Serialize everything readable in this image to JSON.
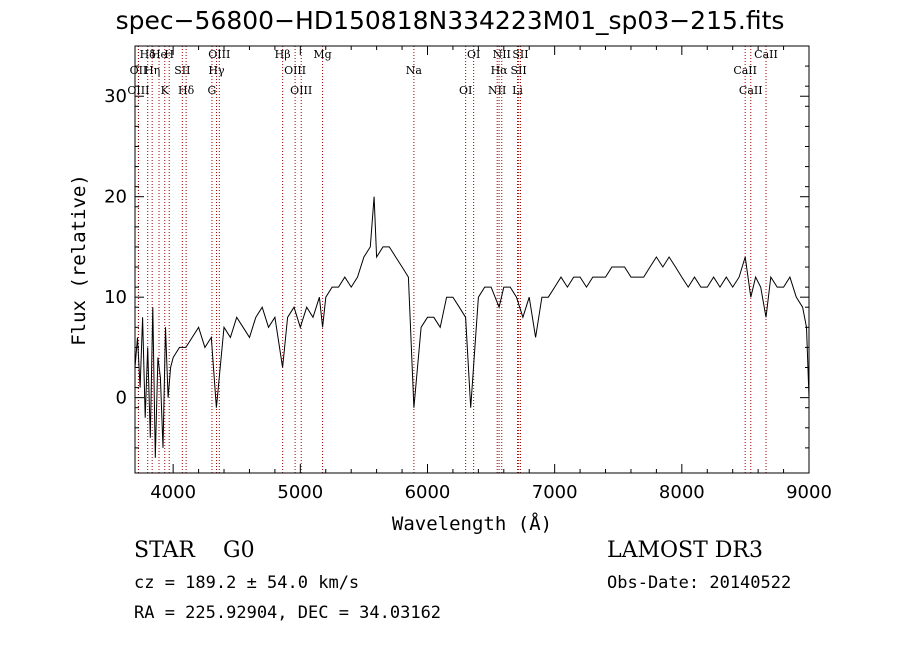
{
  "header": {
    "title": "spec−56800−HD150818N334223M01_sp03−215.fits"
  },
  "info": {
    "object_type": "STAR",
    "subclass": "G0",
    "survey": "LAMOST DR3",
    "cz": "cz = 189.2 ± 54.0 km/s",
    "obs_date": "Obs-Date: 20140522",
    "radec": "RA = 225.92904, DEC =  34.03162"
  },
  "colors": {
    "line_marker": "#a00000",
    "spectrum": "#000000",
    "axis": "#000000"
  },
  "chart_data": {
    "type": "line",
    "title": "spec−56800−HD150818N334223M01_sp03−215.fits",
    "xlabel": "Wavelength (Å)",
    "ylabel": "Flux (relative)",
    "xlim": [
      3700,
      9000
    ],
    "ylim": [
      -7.5,
      35
    ],
    "xticks": [
      4000,
      5000,
      6000,
      7000,
      8000,
      9000
    ],
    "yticks": [
      0,
      10,
      20,
      30
    ],
    "grid": false,
    "series": [
      {
        "name": "spectrum",
        "x": [
          3700,
          3720,
          3740,
          3760,
          3780,
          3800,
          3820,
          3840,
          3860,
          3880,
          3900,
          3920,
          3940,
          3960,
          3980,
          4000,
          4050,
          4100,
          4150,
          4200,
          4250,
          4300,
          4340,
          4400,
          4450,
          4500,
          4550,
          4600,
          4650,
          4700,
          4750,
          4800,
          4861,
          4900,
          4950,
          5000,
          5050,
          5100,
          5150,
          5175,
          5200,
          5250,
          5300,
          5350,
          5400,
          5450,
          5500,
          5550,
          5580,
          5600,
          5650,
          5700,
          5750,
          5800,
          5850,
          5893,
          5950,
          6000,
          6050,
          6100,
          6150,
          6200,
          6250,
          6300,
          6340,
          6400,
          6450,
          6500,
          6563,
          6600,
          6650,
          6700,
          6750,
          6800,
          6850,
          6900,
          6950,
          7000,
          7050,
          7100,
          7150,
          7200,
          7250,
          7300,
          7350,
          7400,
          7450,
          7500,
          7550,
          7600,
          7650,
          7700,
          7750,
          7800,
          7850,
          7900,
          7950,
          8000,
          8050,
          8100,
          8150,
          8200,
          8250,
          8300,
          8350,
          8400,
          8450,
          8498,
          8520,
          8542,
          8580,
          8620,
          8662,
          8700,
          8750,
          8800,
          8850,
          8900,
          8950,
          8980,
          9000
        ],
        "values": [
          3,
          6,
          1,
          8,
          -2,
          5,
          -4,
          9,
          -6,
          4,
          2,
          -5,
          7,
          0,
          3,
          4,
          5,
          5,
          6,
          7,
          5,
          6,
          -1,
          7,
          6,
          8,
          7,
          6,
          8,
          9,
          7,
          8,
          3,
          8,
          9,
          7,
          9,
          8,
          10,
          7,
          10,
          11,
          11,
          12,
          11,
          12,
          14,
          15,
          20,
          14,
          15,
          15,
          14,
          13,
          12,
          -1,
          7,
          8,
          8,
          7,
          10,
          10,
          9,
          8,
          -1,
          10,
          11,
          11,
          9,
          11,
          11,
          10,
          8,
          10,
          6,
          10,
          10,
          11,
          12,
          11,
          12,
          12,
          11,
          12,
          12,
          12,
          13,
          13,
          13,
          12,
          12,
          12,
          13,
          14,
          13,
          14,
          13,
          12,
          11,
          12,
          11,
          11,
          12,
          11,
          12,
          11,
          12,
          14,
          12,
          10,
          12,
          11,
          8,
          12,
          11,
          11,
          12,
          10,
          9,
          7,
          0
        ]
      }
    ],
    "line_markers": [
      {
        "label": "Hδ",
        "wavelength": 3800
      },
      {
        "label": "OII",
        "wavelength": 3727
      },
      {
        "label": "OIII",
        "wavelength": 3727
      },
      {
        "label": "He",
        "wavelength": 3889
      },
      {
        "label": "Hη",
        "wavelength": 3835
      },
      {
        "label": "K",
        "wavelength": 3934
      },
      {
        "label": "H",
        "wavelength": 3969
      },
      {
        "label": "SII",
        "wavelength": 4072
      },
      {
        "label": "Hδ",
        "wavelength": 4102
      },
      {
        "label": "OIII",
        "wavelength": 4363
      },
      {
        "label": "Hγ",
        "wavelength": 4341
      },
      {
        "label": "G",
        "wavelength": 4305
      },
      {
        "label": "Hβ",
        "wavelength": 4861
      },
      {
        "label": "OIII",
        "wavelength": 4959
      },
      {
        "label": "OIII",
        "wavelength": 5007
      },
      {
        "label": "Mg",
        "wavelength": 5175
      },
      {
        "label": "Na",
        "wavelength": 5893
      },
      {
        "label": "OI",
        "wavelength": 6300
      },
      {
        "label": "OI",
        "wavelength": 6363
      },
      {
        "label": "Hα",
        "wavelength": 6563
      },
      {
        "label": "NII",
        "wavelength": 6548
      },
      {
        "label": "NII",
        "wavelength": 6584
      },
      {
        "label": "SII",
        "wavelength": 6717
      },
      {
        "label": "Li",
        "wavelength": 6708
      },
      {
        "label": "SII",
        "wavelength": 6731
      },
      {
        "label": "CaII",
        "wavelength": 8498
      },
      {
        "label": "CaII",
        "wavelength": 8542
      },
      {
        "label": "CaII",
        "wavelength": 8662
      }
    ]
  }
}
